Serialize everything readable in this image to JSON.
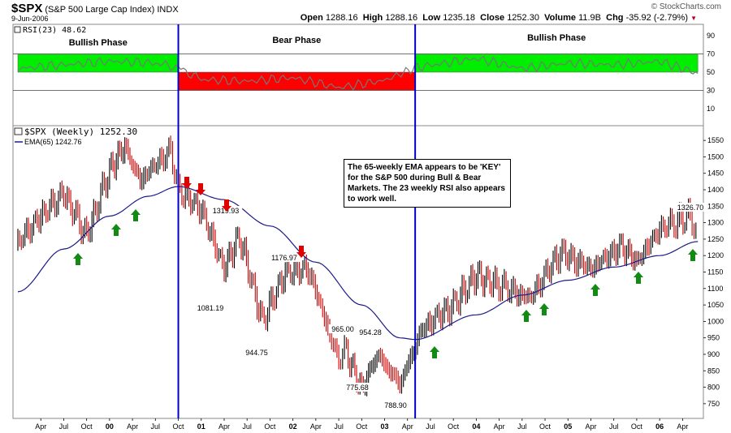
{
  "header": {
    "symbol": "$SPX",
    "description": "(S&P 500 Large Cap Index)",
    "exchange": "INDX",
    "date": "9-Jun-2006",
    "watermark": "© StockCharts.com",
    "open_label": "Open",
    "open": "1288.16",
    "high_label": "High",
    "high": "1288.16",
    "low_label": "Low",
    "low": "1235.18",
    "close_label": "Close",
    "close": "1252.30",
    "volume_label": "Volume",
    "volume": "11.9B",
    "chg_label": "Chg",
    "chg": "-35.92 (-2.79%)"
  },
  "colors": {
    "bullish_band": "#00ee00",
    "bearish_band": "#ff0000",
    "divider": "#0000cc",
    "ema_line": "#1a1a8c",
    "rsi_line": "#777777",
    "up_bar": "#000000",
    "down_bar": "#cc0000",
    "up_arrow": "#138a13",
    "down_arrow": "#e00000"
  },
  "chart_data": [
    {
      "type": "line",
      "panel": "rsi",
      "title": "RSI(23) 48.62",
      "ylim": [
        0,
        100
      ],
      "yticks": [
        10,
        30,
        50,
        70,
        90
      ],
      "phases": [
        {
          "label": "Bullish Phase",
          "band": [
            50,
            70
          ],
          "from": "1999-01",
          "to": "2000-10"
        },
        {
          "label": "Bear Phase",
          "band": [
            30,
            50
          ],
          "from": "2000-10",
          "to": "2003-05"
        },
        {
          "label": "Bullish Phase",
          "band": [
            50,
            70
          ],
          "from": "2003-05",
          "to": "2006-06"
        }
      ],
      "series": [
        {
          "name": "RSI(23)",
          "x": [
            "1999-01",
            "1999-07",
            "2000-01",
            "2000-07",
            "2000-10",
            "2001-01",
            "2001-07",
            "2002-01",
            "2002-07",
            "2003-01",
            "2003-05",
            "2004-01",
            "2004-07",
            "2005-01",
            "2005-07",
            "2006-01",
            "2006-06"
          ],
          "values": [
            54,
            58,
            62,
            60,
            55,
            42,
            40,
            44,
            33,
            41,
            55,
            65,
            54,
            60,
            58,
            62,
            48.62
          ]
        }
      ]
    },
    {
      "type": "line",
      "panel": "price",
      "legend": [
        "$SPX (Weekly) 1252.30",
        "EMA(65) 1242.76"
      ],
      "ylim": [
        725,
        1575
      ],
      "yticks": [
        750,
        800,
        850,
        900,
        950,
        1000,
        1050,
        1100,
        1150,
        1200,
        1250,
        1300,
        1350,
        1400,
        1450,
        1500,
        1550
      ],
      "x_ticks": [
        "Apr",
        "Jul",
        "Oct",
        "00",
        "Apr",
        "Jul",
        "Oct",
        "01",
        "Apr",
        "Jul",
        "Oct",
        "02",
        "Apr",
        "Jul",
        "Oct",
        "03",
        "Apr",
        "Jul",
        "Oct",
        "04",
        "Apr",
        "Jul",
        "Oct",
        "05",
        "Apr",
        "Jul",
        "Oct",
        "06",
        "Apr"
      ],
      "series": [
        {
          "name": "$SPX (Weekly)",
          "x": [
            "1999-01",
            "1999-04",
            "1999-07",
            "1999-10",
            "2000-01",
            "2000-03",
            "2000-05",
            "2000-09",
            "2000-10",
            "2001-01",
            "2001-04",
            "2001-06",
            "2001-09",
            "2001-12",
            "2002-03",
            "2002-07",
            "2002-08",
            "2002-10",
            "2002-12",
            "2003-03",
            "2003-06",
            "2003-10",
            "2004-01",
            "2004-03",
            "2004-08",
            "2004-12",
            "2005-04",
            "2005-08",
            "2005-10",
            "2006-01",
            "2006-05",
            "2006-06"
          ],
          "values": [
            1240,
            1320,
            1390,
            1260,
            1460,
            1530,
            1430,
            1520,
            1400,
            1340,
            1160,
            1260,
            1000,
            1150,
            1160,
            880,
            910,
            790,
            900,
            810,
            980,
            1050,
            1140,
            1120,
            1070,
            1210,
            1160,
            1230,
            1180,
            1280,
            1320,
            1252.3
          ]
        },
        {
          "name": "EMA(65)",
          "x": [
            "1999-01",
            "1999-07",
            "2000-01",
            "2000-06",
            "2000-10",
            "2001-04",
            "2001-10",
            "2002-04",
            "2002-10",
            "2003-03",
            "2003-05",
            "2004-01",
            "2004-07",
            "2005-01",
            "2005-07",
            "2006-01",
            "2006-06"
          ],
          "values": [
            1090,
            1220,
            1320,
            1380,
            1410,
            1370,
            1290,
            1180,
            1050,
            950,
            945,
            1020,
            1080,
            1125,
            1165,
            1200,
            1242.76
          ]
        }
      ],
      "annotations": [
        "1326.70",
        "1319.93",
        "1176.97",
        "1081.19",
        "965.00",
        "954.28",
        "944.75",
        "775.68",
        "788.90"
      ],
      "note": "The 65-weekly EMA appears to be 'KEY' for the S&P 500 during Bull & Bear Markets.  The 23 weekly RSI also appears to work well."
    }
  ]
}
